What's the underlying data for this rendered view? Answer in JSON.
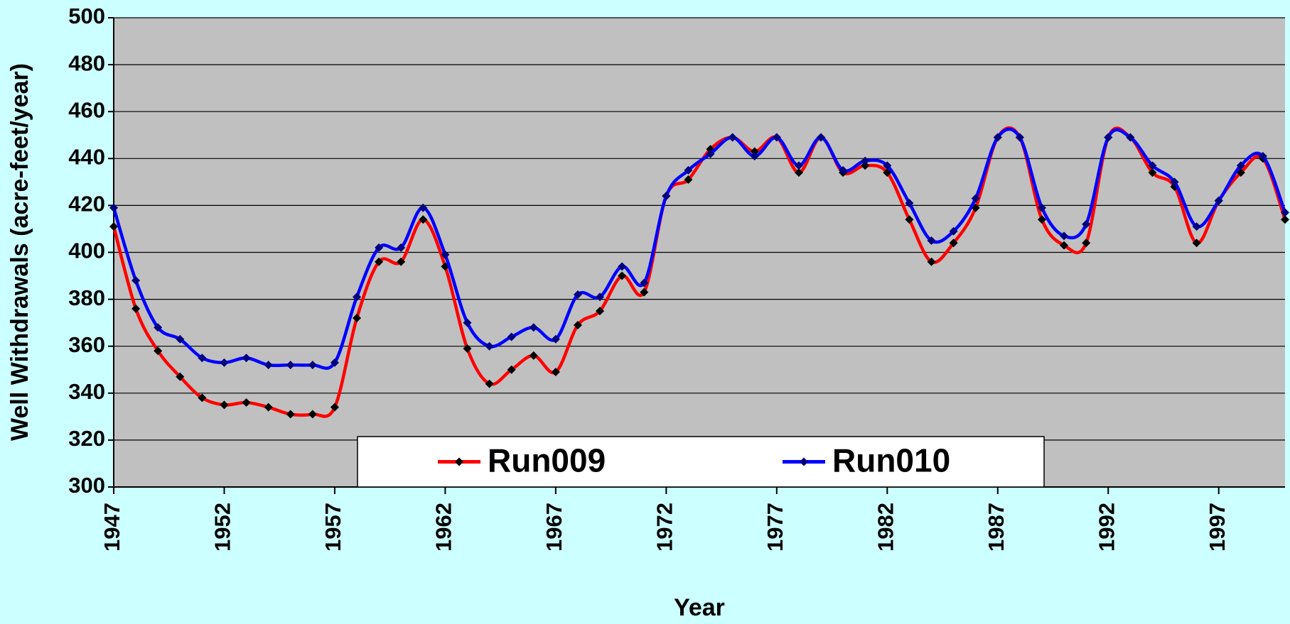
{
  "chart_data": {
    "type": "line",
    "x_label": "Year",
    "y_label": "Well Withdrawals (acre-feet/year)",
    "x": [
      1947,
      1948,
      1949,
      1950,
      1951,
      1952,
      1953,
      1954,
      1955,
      1956,
      1957,
      1958,
      1959,
      1960,
      1961,
      1962,
      1963,
      1964,
      1965,
      1966,
      1967,
      1968,
      1969,
      1970,
      1971,
      1972,
      1973,
      1974,
      1975,
      1976,
      1977,
      1978,
      1979,
      1980,
      1981,
      1982,
      1983,
      1984,
      1985,
      1986,
      1987,
      1988,
      1989,
      1990,
      1991,
      1992,
      1993,
      1994,
      1995,
      1996,
      1997,
      1998,
      1999,
      2000
    ],
    "series": [
      {
        "name": "Run009",
        "color": "#ff0000",
        "marker_color": "#000000",
        "values": [
          411,
          376,
          358,
          347,
          338,
          335,
          336,
          334,
          331,
          331,
          334,
          372,
          396,
          396,
          414,
          394,
          359,
          344,
          350,
          356,
          349,
          369,
          375,
          390,
          383,
          424,
          431,
          444,
          449,
          443,
          449,
          434,
          449,
          434,
          437,
          434,
          414,
          396,
          404,
          419,
          449,
          449,
          414,
          403,
          404,
          449,
          449,
          434,
          428,
          404,
          422,
          434,
          440,
          414
        ]
      },
      {
        "name": "Run010",
        "color": "#0000ff",
        "marker_color": "#000080",
        "values": [
          419,
          388,
          368,
          363,
          355,
          353,
          355,
          352,
          352,
          352,
          353,
          381,
          402,
          402,
          419,
          399,
          370,
          360,
          364,
          368,
          363,
          382,
          381,
          394,
          387,
          424,
          435,
          442,
          449,
          441,
          449,
          437,
          449,
          435,
          439,
          437,
          421,
          405,
          409,
          423,
          449,
          449,
          419,
          407,
          412,
          449,
          449,
          437,
          430,
          411,
          422,
          437,
          441,
          417
        ]
      }
    ],
    "xlim": [
      1947,
      2000
    ],
    "xticks": [
      1947,
      1952,
      1957,
      1962,
      1967,
      1972,
      1977,
      1982,
      1987,
      1992,
      1997
    ],
    "ylim": [
      300,
      500
    ],
    "yticks": [
      300,
      320,
      340,
      360,
      380,
      400,
      420,
      440,
      460,
      480,
      500
    ],
    "grid": true,
    "smooth": true,
    "legend": "bottom-center",
    "plot_background": "#c0c0c0"
  }
}
